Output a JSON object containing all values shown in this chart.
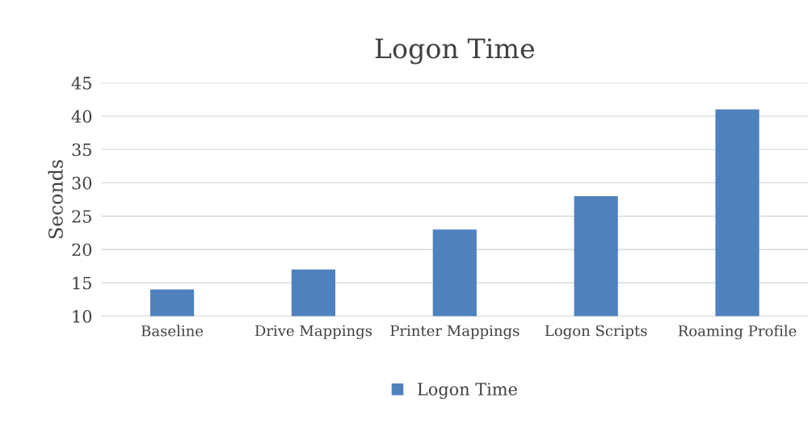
{
  "chart_data": {
    "type": "bar",
    "title": "Logon Time",
    "ylabel": "Seconds",
    "categories": [
      "Baseline",
      "Drive Mappings",
      "Printer Mappings",
      "Logon Scripts",
      "Roaming Profile"
    ],
    "series": [
      {
        "name": "Logon Time",
        "color": "#4f81bd",
        "values": [
          14,
          17,
          23,
          28,
          41
        ]
      }
    ],
    "ylim": [
      10,
      45
    ],
    "yticks": [
      10,
      15,
      20,
      25,
      30,
      35,
      40,
      45
    ],
    "grid": "y",
    "legend": "bottom"
  }
}
